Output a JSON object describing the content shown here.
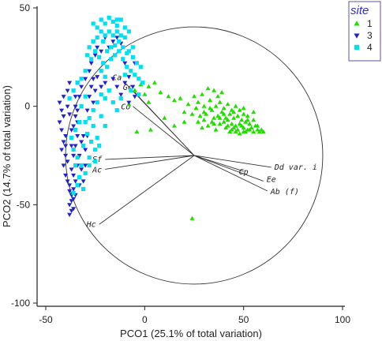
{
  "chart_data": {
    "type": "scatter",
    "xlabel": "PCO1 (25.1% of total variation)",
    "ylabel": "PCO2 (14.7% of total variation)",
    "xlim": [
      -50,
      100
    ],
    "ylim": [
      -100,
      50
    ],
    "x_ticks": [
      "-50",
      "0",
      "50",
      "100"
    ],
    "y_ticks": [
      "50",
      "0",
      "-50",
      "-100"
    ],
    "grid": false,
    "legend": {
      "title": "site",
      "placement": "top-right",
      "entries": [
        {
          "label": "1",
          "marker": "triangle-up",
          "color": "#22dd00"
        },
        {
          "label": "3",
          "marker": "triangle-down",
          "color": "#2222cc"
        },
        {
          "label": "4",
          "marker": "square",
          "color": "#00e0f0"
        }
      ]
    },
    "circle": {
      "center": [
        25,
        -25
      ],
      "radius": 65
    },
    "vectors": [
      {
        "label": "Ca",
        "x": -10,
        "y": 12
      },
      {
        "label": "Gc",
        "x": -5,
        "y": 7
      },
      {
        "label": "Co",
        "x": -6,
        "y": 0
      },
      {
        "label": "Sf",
        "x": -20,
        "y": -27
      },
      {
        "label": "Ac",
        "x": -20,
        "y": -32
      },
      {
        "label": "Hc",
        "x": -23,
        "y": -60
      },
      {
        "label": "Cp",
        "x": 50,
        "y": -33
      },
      {
        "label": "Dd var. i",
        "x": 64,
        "y": -31
      },
      {
        "label": "Ee",
        "x": 60,
        "y": -38
      },
      {
        "label": "Ab (f)",
        "x": 62,
        "y": -43
      }
    ],
    "series": [
      {
        "name": "1",
        "marker": "triangle-up",
        "color": "#22dd00",
        "points": [
          [
            -5,
            8
          ],
          [
            -2,
            11
          ],
          [
            0,
            6
          ],
          [
            2,
            10
          ],
          [
            5,
            12
          ],
          [
            8,
            7
          ],
          [
            12,
            5
          ],
          [
            15,
            3
          ],
          [
            20,
            -3
          ],
          [
            18,
            4
          ],
          [
            22,
            1
          ],
          [
            25,
            5
          ],
          [
            27,
            2
          ],
          [
            28,
            -5
          ],
          [
            30,
            0
          ],
          [
            31,
            -4
          ],
          [
            33,
            3
          ],
          [
            34,
            -2
          ],
          [
            35,
            -6
          ],
          [
            36,
            0
          ],
          [
            37,
            -5
          ],
          [
            38,
            2
          ],
          [
            39,
            -3
          ],
          [
            40,
            -8
          ],
          [
            40,
            -1
          ],
          [
            41,
            -6
          ],
          [
            42,
            1
          ],
          [
            43,
            -4
          ],
          [
            44,
            -9
          ],
          [
            44,
            -2
          ],
          [
            45,
            -6
          ],
          [
            46,
            0
          ],
          [
            46,
            -10
          ],
          [
            47,
            -5
          ],
          [
            48,
            -2
          ],
          [
            48,
            -9
          ],
          [
            49,
            -7
          ],
          [
            50,
            -4
          ],
          [
            50,
            -11
          ],
          [
            51,
            -8
          ],
          [
            52,
            -5
          ],
          [
            52,
            -12
          ],
          [
            53,
            -9
          ],
          [
            54,
            -11
          ],
          [
            55,
            -7
          ],
          [
            55,
            -13
          ],
          [
            56,
            -10
          ],
          [
            57,
            -12
          ],
          [
            58,
            -13
          ],
          [
            59,
            -12
          ],
          [
            60,
            -13
          ],
          [
            42,
            -10
          ],
          [
            44,
            -12
          ],
          [
            46,
            -13
          ],
          [
            48,
            -14
          ],
          [
            50,
            -13
          ],
          [
            38,
            -9
          ],
          [
            36,
            -12
          ],
          [
            34,
            -8
          ],
          [
            32,
            -10
          ],
          [
            30,
            -7
          ],
          [
            29,
            -11
          ],
          [
            41,
            -11
          ],
          [
            43,
            -13
          ],
          [
            45,
            -11
          ],
          [
            47,
            -12
          ],
          [
            49,
            -10
          ],
          [
            51,
            -13
          ],
          [
            53,
            -12
          ],
          [
            38,
            -6
          ],
          [
            40,
            -4
          ],
          [
            42,
            -7
          ],
          [
            30,
            -3
          ],
          [
            33,
            -1
          ],
          [
            35,
            -9
          ],
          [
            26,
            -1
          ],
          [
            24,
            -4
          ],
          [
            37,
            5
          ],
          [
            39,
            7
          ],
          [
            35,
            8
          ],
          [
            32,
            9
          ],
          [
            29,
            6
          ],
          [
            27,
            -8
          ],
          [
            45,
            -3
          ],
          [
            50,
            -1
          ],
          [
            52,
            -7
          ],
          [
            57,
            -10
          ],
          [
            55,
            -3
          ],
          [
            -8,
            1
          ],
          [
            2,
            2
          ],
          [
            10,
            -6
          ],
          [
            15,
            -10
          ],
          [
            20,
            -8
          ],
          [
            -4,
            -13
          ],
          [
            24,
            -57
          ],
          [
            3,
            -12
          ]
        ]
      },
      {
        "name": "3",
        "marker": "triangle-down",
        "color": "#2222cc",
        "points": [
          [
            -38,
            -50
          ],
          [
            -37,
            -48
          ],
          [
            -36,
            -52
          ],
          [
            -38,
            -55
          ],
          [
            -37,
            -45
          ],
          [
            -36,
            -42
          ],
          [
            -38,
            -40
          ],
          [
            -39,
            -38
          ],
          [
            -40,
            -35
          ],
          [
            -41,
            -30
          ],
          [
            -40,
            -25
          ],
          [
            -42,
            -22
          ],
          [
            -41,
            -18
          ],
          [
            -40,
            -15
          ],
          [
            -42,
            -12
          ],
          [
            -43,
            -8
          ],
          [
            -41,
            -5
          ],
          [
            -42,
            -2
          ],
          [
            -43,
            2
          ],
          [
            -41,
            5
          ],
          [
            -39,
            8
          ],
          [
            -38,
            12
          ],
          [
            -40,
            -20
          ],
          [
            -39,
            -28
          ],
          [
            -37,
            -32
          ],
          [
            -36,
            -35
          ],
          [
            -35,
            -38
          ],
          [
            -34,
            -30
          ],
          [
            -36,
            -25
          ],
          [
            -35,
            -20
          ],
          [
            -34,
            -15
          ],
          [
            -36,
            -10
          ],
          [
            -35,
            -5
          ],
          [
            -34,
            -2
          ],
          [
            -33,
            5
          ],
          [
            -32,
            10
          ],
          [
            -34,
            12
          ],
          [
            -33,
            -25
          ],
          [
            -32,
            -32
          ],
          [
            -31,
            -38
          ],
          [
            -30,
            -30
          ],
          [
            -30,
            -22
          ],
          [
            -31,
            -15
          ],
          [
            -30,
            -8
          ],
          [
            -29,
            -2
          ],
          [
            -28,
            5
          ],
          [
            -27,
            10
          ],
          [
            -26,
            14
          ],
          [
            -28,
            18
          ],
          [
            -27,
            22
          ],
          [
            -25,
            26
          ],
          [
            -24,
            30
          ],
          [
            -26,
            33
          ],
          [
            -22,
            28
          ],
          [
            -20,
            35
          ],
          [
            -18,
            30
          ],
          [
            -16,
            33
          ],
          [
            -14,
            35
          ],
          [
            -12,
            32
          ],
          [
            -20,
            12
          ],
          [
            -18,
            8
          ],
          [
            -16,
            14
          ],
          [
            -14,
            10
          ],
          [
            -12,
            6
          ],
          [
            -10,
            12
          ],
          [
            -8,
            15
          ],
          [
            -6,
            10
          ],
          [
            -5,
            5
          ],
          [
            -8,
            2
          ],
          [
            -24,
            15
          ],
          [
            -22,
            10
          ],
          [
            -25,
            8
          ],
          [
            -26,
            2
          ],
          [
            -30,
            14
          ],
          [
            -38,
            -4
          ],
          [
            -35,
            0
          ],
          [
            -37,
            -20
          ],
          [
            -33,
            -40
          ],
          [
            -35,
            -45
          ],
          [
            -37,
            -53
          ],
          [
            -36,
            -47
          ],
          [
            -38,
            -43
          ],
          [
            -29,
            -15
          ],
          [
            -32,
            -18
          ],
          [
            -34,
            -8
          ],
          [
            -35,
            5
          ],
          [
            -36,
            8
          ],
          [
            -39,
            0
          ],
          [
            -37,
            -12
          ],
          [
            -10,
            22
          ],
          [
            -5,
            22
          ],
          [
            -15,
            26
          ]
        ]
      },
      {
        "name": "4",
        "marker": "square",
        "color": "#00e0f0",
        "points": [
          [
            -22,
            44
          ],
          [
            -20,
            42
          ],
          [
            -18,
            45
          ],
          [
            -16,
            43
          ],
          [
            -14,
            41
          ],
          [
            -12,
            44
          ],
          [
            -10,
            40
          ],
          [
            -18,
            38
          ],
          [
            -16,
            36
          ],
          [
            -14,
            38
          ],
          [
            -12,
            36
          ],
          [
            -10,
            35
          ],
          [
            -20,
            36
          ],
          [
            -22,
            38
          ],
          [
            -24,
            35
          ],
          [
            -26,
            33
          ],
          [
            -28,
            30
          ],
          [
            -25,
            28
          ],
          [
            -23,
            25
          ],
          [
            -21,
            22
          ],
          [
            -19,
            20
          ],
          [
            -17,
            24
          ],
          [
            -15,
            26
          ],
          [
            -13,
            28
          ],
          [
            -11,
            24
          ],
          [
            -9,
            20
          ],
          [
            -7,
            18
          ],
          [
            -5,
            16
          ],
          [
            -3,
            14
          ],
          [
            -1,
            12
          ],
          [
            -8,
            28
          ],
          [
            -6,
            25
          ],
          [
            -4,
            22
          ],
          [
            -2,
            20
          ],
          [
            -30,
            18
          ],
          [
            -32,
            14
          ],
          [
            -34,
            12
          ],
          [
            -36,
            8
          ],
          [
            -38,
            4
          ],
          [
            -33,
            -8
          ],
          [
            -35,
            -12
          ],
          [
            -37,
            -16
          ],
          [
            -36,
            -22
          ],
          [
            -34,
            -26
          ],
          [
            -32,
            -30
          ],
          [
            -30,
            -34
          ],
          [
            -33,
            -36
          ],
          [
            -35,
            -30
          ],
          [
            -31,
            -20
          ],
          [
            -29,
            -14
          ],
          [
            -27,
            -18
          ],
          [
            -25,
            -22
          ],
          [
            -28,
            -26
          ],
          [
            -26,
            -10
          ],
          [
            -24,
            -16
          ],
          [
            -28,
            -6
          ],
          [
            -26,
            -2
          ],
          [
            -24,
            2
          ],
          [
            -22,
            6
          ],
          [
            -20,
            4
          ],
          [
            -18,
            8
          ],
          [
            -16,
            2
          ],
          [
            -14,
            -2
          ],
          [
            -12,
            4
          ],
          [
            -20,
            -10
          ],
          [
            -22,
            -5
          ],
          [
            -27,
            24
          ],
          [
            -29,
            26
          ],
          [
            -19,
            28
          ],
          [
            -17,
            30
          ],
          [
            -15,
            31
          ],
          [
            -13,
            33
          ],
          [
            -21,
            33
          ],
          [
            -11,
            30
          ],
          [
            -9,
            27
          ],
          [
            -30,
            5
          ],
          [
            -32,
            0
          ],
          [
            -28,
            -30
          ],
          [
            -34,
            -40
          ],
          [
            -36,
            -44
          ],
          [
            -31,
            -42
          ],
          [
            -30,
            -8
          ],
          [
            -25,
            -28
          ],
          [
            -23,
            -20
          ],
          [
            -7,
            8
          ],
          [
            -3,
            6
          ],
          [
            -10,
            16
          ],
          [
            -6,
            30
          ],
          [
            -24,
            40
          ],
          [
            -26,
            42
          ],
          [
            -14,
            44
          ],
          [
            -8,
            38
          ],
          [
            -20,
            15
          ],
          [
            -22,
            18
          ]
        ]
      }
    ]
  }
}
